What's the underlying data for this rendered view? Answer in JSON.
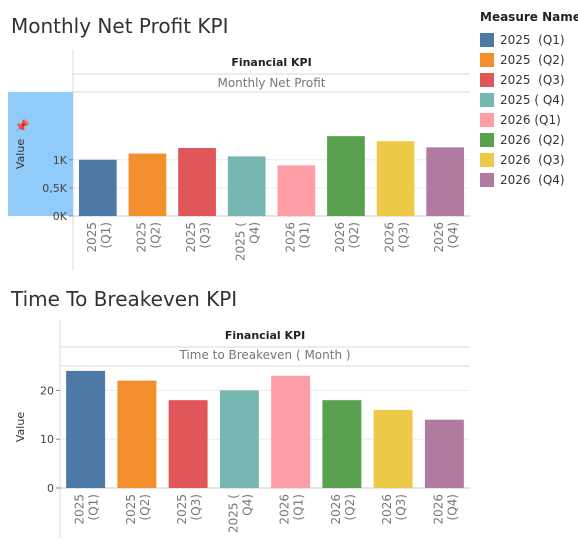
{
  "titles": {
    "net_profit": "Monthly Net Profit KPI",
    "breakeven": "Time To Breakeven KPI"
  },
  "legend": {
    "title": "Measure Names",
    "items": [
      {
        "label": "2025  (Q1)",
        "color": "#4e79a7"
      },
      {
        "label": "2025  (Q2)",
        "color": "#f28e2b"
      },
      {
        "label": "2025  (Q3)",
        "color": "#e15759"
      },
      {
        "label": "2025 ( Q4)",
        "color": "#76b7b2"
      },
      {
        "label": "2026 (Q1)",
        "color": "#ff9da7"
      },
      {
        "label": "2026  (Q2)",
        "color": "#59a14f"
      },
      {
        "label": "2026  (Q3)",
        "color": "#edc948"
      },
      {
        "label": "2026  (Q4)",
        "color": "#b07aa1"
      }
    ]
  },
  "chart_data": [
    {
      "type": "bar",
      "header": "Financial KPI",
      "subtitle": "Monthly Net Profit",
      "ylabel": "Value",
      "categories": [
        [
          "2025",
          "(Q1)"
        ],
        [
          "2025",
          "(Q2)"
        ],
        [
          "2025",
          "(Q3)"
        ],
        [
          "2025 (",
          "Q4)"
        ],
        [
          "2026",
          "(Q1)"
        ],
        [
          "2026",
          "(Q2)"
        ],
        [
          "2026",
          "(Q3)"
        ],
        [
          "2026",
          "(Q4)"
        ]
      ],
      "values": [
        1000,
        1110,
        1210,
        1060,
        900,
        1420,
        1330,
        1220
      ],
      "colors": [
        "#4e79a7",
        "#f28e2b",
        "#e15759",
        "#76b7b2",
        "#ff9da7",
        "#59a14f",
        "#edc948",
        "#b07aa1"
      ],
      "ylim": [
        0,
        1500
      ],
      "yticks": [
        {
          "v": 0,
          "label": "0K"
        },
        {
          "v": 500,
          "label": "0,5K"
        },
        {
          "v": 1000,
          "label": "1K"
        }
      ],
      "highlight_axis": true
    },
    {
      "type": "bar",
      "header": "Financial KPI",
      "subtitle": "Time to Breakeven ( Month )",
      "ylabel": "Value",
      "categories": [
        [
          "2025",
          "(Q1)"
        ],
        [
          "2025",
          "(Q2)"
        ],
        [
          "2025",
          "(Q3)"
        ],
        [
          "2025 (",
          "Q4)"
        ],
        [
          "2026",
          "(Q1)"
        ],
        [
          "2026",
          "(Q2)"
        ],
        [
          "2026",
          "(Q3)"
        ],
        [
          "2026",
          "(Q4)"
        ]
      ],
      "values": [
        24,
        22,
        18,
        20,
        23,
        18,
        16,
        14
      ],
      "colors": [
        "#4e79a7",
        "#f28e2b",
        "#e15759",
        "#76b7b2",
        "#ff9da7",
        "#59a14f",
        "#edc948",
        "#b07aa1"
      ],
      "ylim": [
        0,
        25
      ],
      "yticks": [
        {
          "v": 0,
          "label": "0"
        },
        {
          "v": 10,
          "label": "10"
        },
        {
          "v": 20,
          "label": "20"
        }
      ],
      "highlight_axis": false
    }
  ]
}
